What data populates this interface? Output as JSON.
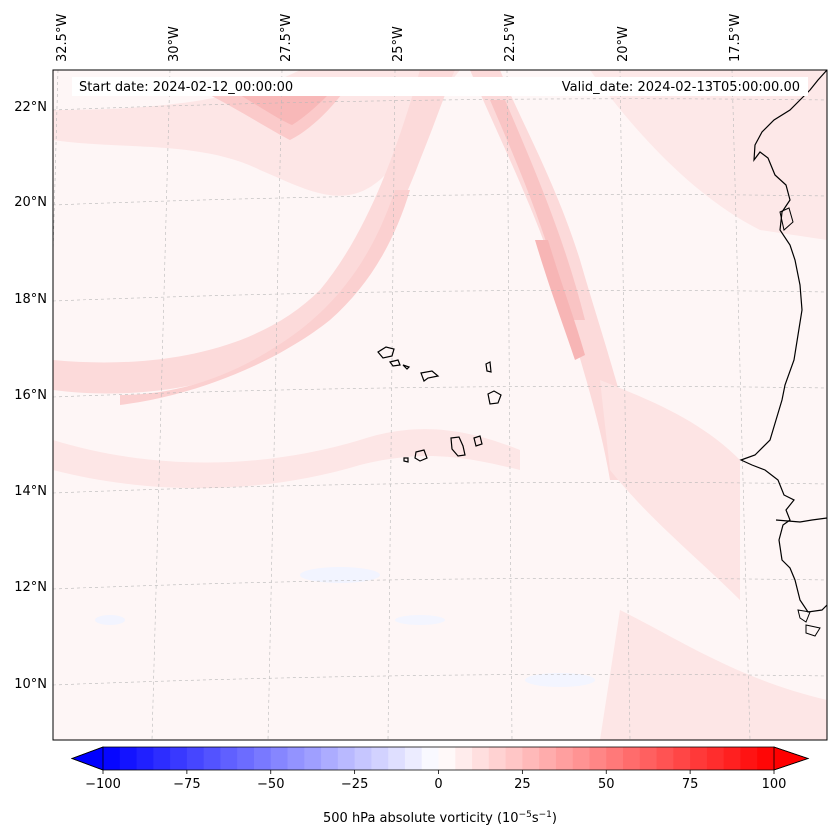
{
  "header": {
    "start_date": "Start date: 2024-02-12_00:00:00",
    "valid_date": "Valid_date: 2024-02-13T05:00:00.00"
  },
  "map": {
    "longitude_labels": [
      "32.5°W",
      "30°W",
      "27.5°W",
      "25°W",
      "22.5°W",
      "20°W",
      "17.5°W"
    ],
    "latitude_labels": [
      "22°N",
      "20°N",
      "18°N",
      "16°N",
      "14°N",
      "12°N",
      "10°N"
    ],
    "field": "500 hPa absolute vorticity",
    "region": "Cape Verde islands and West African coast (Senegal)"
  },
  "colorbar": {
    "ticks": [
      -100,
      -75,
      -50,
      -25,
      0,
      25,
      50,
      75,
      100
    ],
    "tick_labels": [
      "−100",
      "−75",
      "−50",
      "−25",
      "0",
      "25",
      "50",
      "75",
      "100"
    ],
    "range": [
      -100,
      100
    ],
    "step": 5,
    "label": "500 hPa absolute vorticity (10",
    "label_exp1": "−5",
    "label_mid": "s",
    "label_exp2": "−1",
    "label_end": ")",
    "colors": {
      "min": "#0000ff",
      "mid": "#ffffff",
      "max": "#ff0000"
    }
  }
}
